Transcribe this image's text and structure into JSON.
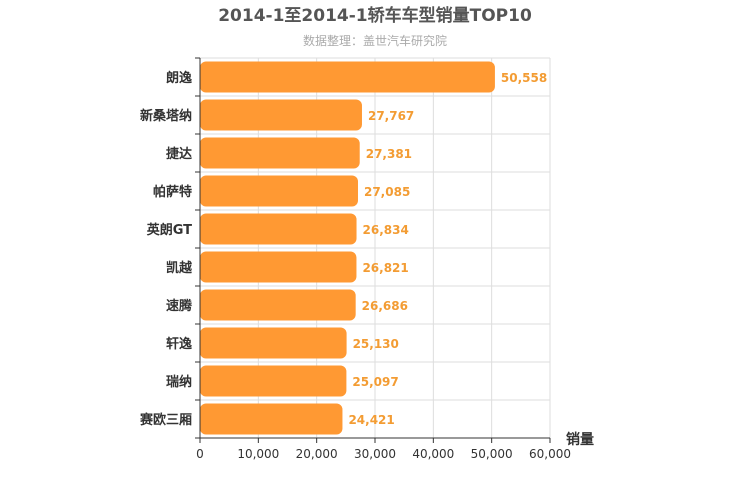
{
  "chart_data": {
    "type": "bar",
    "orientation": "horizontal",
    "title": "2014-1至2014-1轿车车型销量TOP10",
    "subtitle": "数据整理：盖世汽车研究院",
    "xlabel": "销量",
    "ylabel": "",
    "categories": [
      "朗逸",
      "新桑塔纳",
      "捷达",
      "帕萨特",
      "英朗GT",
      "凯越",
      "速腾",
      "轩逸",
      "瑞纳",
      "赛欧三厢"
    ],
    "values": [
      50558,
      27767,
      27381,
      27085,
      26834,
      26821,
      26686,
      25130,
      25097,
      24421
    ],
    "value_labels": [
      "50,558",
      "27,767",
      "27,381",
      "27,085",
      "26,834",
      "26,821",
      "26,686",
      "25,130",
      "25,097",
      "24,421"
    ],
    "xlim": [
      0,
      60000
    ],
    "xticks": [
      0,
      10000,
      20000,
      30000,
      40000,
      50000,
      60000
    ],
    "xtick_labels": [
      "0",
      "10,000",
      "20,000",
      "30,000",
      "40,000",
      "50,000",
      "60,000"
    ],
    "grid": true,
    "colors": {
      "bar": "#ff9933",
      "value_label": "#f39c33",
      "title": "#555555",
      "subtitle": "#aaaaaa",
      "axis_text": "#333333",
      "grid": "#dddddd"
    }
  }
}
